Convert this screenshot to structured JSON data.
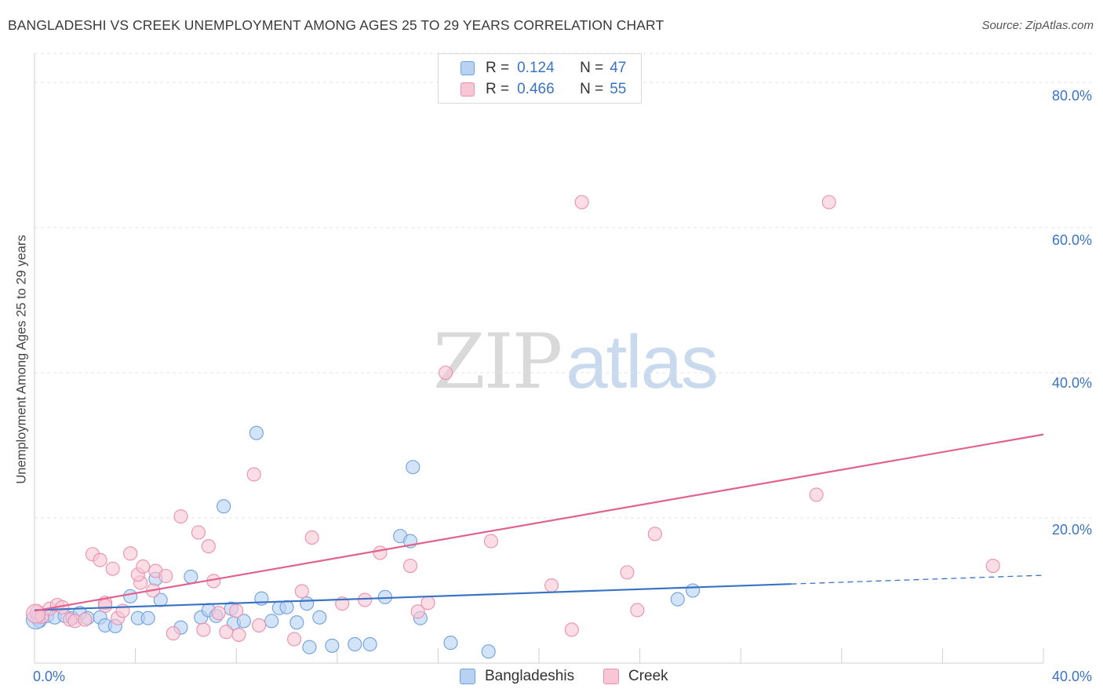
{
  "header": {
    "title": "BANGLADESHI VS CREEK UNEMPLOYMENT AMONG AGES 25 TO 29 YEARS CORRELATION CHART",
    "source": "Source: ZipAtlas.com"
  },
  "watermark": {
    "zip": "ZIP",
    "atlas": "atlas"
  },
  "legend_top": [
    {
      "r_label": "R =",
      "r_value": "0.124",
      "n_label": "N =",
      "n_value": "47",
      "fill": "#b8d2f4",
      "stroke": "#6fa0e0"
    },
    {
      "r_label": "R =",
      "r_value": "0.466",
      "n_label": "N =",
      "n_value": "55",
      "fill": "#f8c6d5",
      "stroke": "#ec8fae"
    }
  ],
  "legend_bottom": [
    {
      "label": "Bangladeshis",
      "fill": "#b8d2f4",
      "stroke": "#6fa0e0"
    },
    {
      "label": "Creek",
      "fill": "#f8c6d5",
      "stroke": "#ec8fae"
    }
  ],
  "chart_data": {
    "type": "scatter",
    "title": "BANGLADESHI VS CREEK UNEMPLOYMENT AMONG AGES 25 TO 29 YEARS CORRELATION CHART",
    "xlabel": "",
    "ylabel": "Unemployment Among Ages 25 to 29 years",
    "xlim": [
      0,
      40
    ],
    "ylim": [
      0,
      84
    ],
    "x_tick_labels": [
      "0.0%",
      "40.0%"
    ],
    "y_ticks": [
      20,
      40,
      60,
      80
    ],
    "y_tick_labels": [
      "20.0%",
      "40.0%",
      "60.0%",
      "80.0%"
    ],
    "grid": "horizontal dashed",
    "legend_position": "top-center and bottom",
    "series": [
      {
        "name": "Bangladeshis",
        "color": "#3b73c4",
        "marker_fill": "#b8d2f4",
        "points": [
          [
            0.1,
            6.2
          ],
          [
            0.2,
            5.8
          ],
          [
            0.5,
            6.5
          ],
          [
            0.8,
            6.3
          ],
          [
            1.2,
            6.5
          ],
          [
            1.5,
            6.2
          ],
          [
            1.8,
            6.9
          ],
          [
            2.1,
            6.2
          ],
          [
            2.6,
            6.3
          ],
          [
            2.8,
            5.2
          ],
          [
            3.2,
            5.1
          ],
          [
            3.8,
            9.2
          ],
          [
            4.1,
            6.2
          ],
          [
            4.5,
            6.2
          ],
          [
            4.8,
            11.6
          ],
          [
            5.0,
            8.7
          ],
          [
            5.8,
            4.9
          ],
          [
            6.2,
            11.9
          ],
          [
            6.6,
            6.3
          ],
          [
            6.9,
            7.3
          ],
          [
            7.2,
            6.5
          ],
          [
            7.5,
            21.6
          ],
          [
            7.8,
            7.5
          ],
          [
            7.9,
            5.5
          ],
          [
            8.3,
            5.8
          ],
          [
            8.8,
            31.7
          ],
          [
            9.0,
            8.9
          ],
          [
            9.4,
            5.8
          ],
          [
            9.7,
            7.6
          ],
          [
            10.0,
            7.7
          ],
          [
            10.4,
            5.6
          ],
          [
            10.8,
            8.2
          ],
          [
            10.9,
            2.2
          ],
          [
            11.3,
            6.3
          ],
          [
            11.8,
            2.4
          ],
          [
            12.7,
            2.6
          ],
          [
            13.3,
            2.6
          ],
          [
            13.9,
            9.1
          ],
          [
            14.5,
            17.5
          ],
          [
            14.9,
            16.8
          ],
          [
            15.0,
            27.0
          ],
          [
            15.3,
            6.2
          ],
          [
            16.5,
            2.8
          ],
          [
            18.0,
            1.6
          ],
          [
            25.5,
            8.8
          ],
          [
            26.1,
            10.0
          ],
          [
            0.05,
            6.0
          ]
        ]
      },
      {
        "name": "Creek",
        "color": "#e0628f",
        "marker_fill": "#f8c6d5",
        "points": [
          [
            0.1,
            7.0
          ],
          [
            0.3,
            6.4
          ],
          [
            0.6,
            7.5
          ],
          [
            0.9,
            8.0
          ],
          [
            1.1,
            7.7
          ],
          [
            1.4,
            6.0
          ],
          [
            1.6,
            5.8
          ],
          [
            2.0,
            6.0
          ],
          [
            2.3,
            15.0
          ],
          [
            2.6,
            14.2
          ],
          [
            2.8,
            8.3
          ],
          [
            2.8,
            7.9
          ],
          [
            3.1,
            13.0
          ],
          [
            3.3,
            6.2
          ],
          [
            3.5,
            7.2
          ],
          [
            3.8,
            15.1
          ],
          [
            4.2,
            11.1
          ],
          [
            4.1,
            12.2
          ],
          [
            4.3,
            13.3
          ],
          [
            4.7,
            10.0
          ],
          [
            4.8,
            12.7
          ],
          [
            5.2,
            12.0
          ],
          [
            5.5,
            4.1
          ],
          [
            5.8,
            20.2
          ],
          [
            6.5,
            18.0
          ],
          [
            6.7,
            4.6
          ],
          [
            6.9,
            16.1
          ],
          [
            7.1,
            11.3
          ],
          [
            7.3,
            6.9
          ],
          [
            7.6,
            4.3
          ],
          [
            8.0,
            7.2
          ],
          [
            8.1,
            3.9
          ],
          [
            8.7,
            26.0
          ],
          [
            8.9,
            5.2
          ],
          [
            10.3,
            3.3
          ],
          [
            10.6,
            9.9
          ],
          [
            11.0,
            17.3
          ],
          [
            12.2,
            8.2
          ],
          [
            13.1,
            8.7
          ],
          [
            13.7,
            15.2
          ],
          [
            14.9,
            13.4
          ],
          [
            15.2,
            7.1
          ],
          [
            15.6,
            8.3
          ],
          [
            16.3,
            40.0
          ],
          [
            18.1,
            16.8
          ],
          [
            20.5,
            10.7
          ],
          [
            21.3,
            4.6
          ],
          [
            21.7,
            63.5
          ],
          [
            23.5,
            12.5
          ],
          [
            23.9,
            7.3
          ],
          [
            24.6,
            17.8
          ],
          [
            31.5,
            63.5
          ],
          [
            31.0,
            23.2
          ],
          [
            38.0,
            13.4
          ],
          [
            0.05,
            6.8
          ]
        ]
      }
    ],
    "trend_lines": [
      {
        "series": "Bangladeshis",
        "solid": [
          [
            0,
            7.3
          ],
          [
            30,
            10.9
          ]
        ],
        "dashed": [
          [
            30,
            10.9
          ],
          [
            40,
            12.1
          ]
        ]
      },
      {
        "series": "Creek",
        "solid": [
          [
            0,
            7.2
          ],
          [
            40,
            31.5
          ]
        ]
      }
    ]
  }
}
